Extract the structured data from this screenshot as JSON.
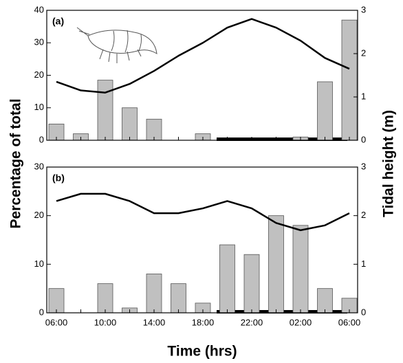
{
  "chart_data": [
    {
      "type": "bar",
      "panel_label": "(a)",
      "y_label": "Percentage of total",
      "y2_label": "Tidal height (m)",
      "ylim": [
        0,
        40
      ],
      "yticks": [
        0,
        10,
        20,
        30,
        40
      ],
      "y2lim": [
        0,
        3
      ],
      "y2ticks": [
        0,
        1,
        2,
        3
      ],
      "series": [
        {
          "type": "bar",
          "color": "#c0c0c0",
          "values": [
            5,
            2,
            18.5,
            10,
            6.5,
            0,
            2,
            0,
            0,
            0,
            1,
            18,
            37
          ]
        },
        {
          "type": "line",
          "axis": "y2",
          "color": "#000000",
          "values": [
            1.35,
            1.15,
            1.1,
            1.3,
            1.6,
            1.95,
            2.25,
            2.6,
            2.8,
            2.6,
            2.3,
            1.9,
            1.65
          ]
        }
      ]
    },
    {
      "type": "bar",
      "panel_label": "(b)",
      "x_label": "Time (hrs)",
      "categories": [
        "06:00",
        null,
        "10:00",
        null,
        "14:00",
        null,
        "18:00",
        null,
        "22:00",
        null,
        "02:00",
        null,
        "06:00"
      ],
      "ylim": [
        0,
        30
      ],
      "yticks": [
        0,
        10,
        20,
        30
      ],
      "y2lim": [
        0,
        3
      ],
      "y2ticks": [
        0,
        1,
        2,
        3
      ],
      "series": [
        {
          "type": "bar",
          "color": "#c0c0c0",
          "values": [
            5,
            0,
            6,
            1,
            8,
            6,
            2,
            14,
            12,
            20,
            18,
            5,
            3
          ]
        },
        {
          "type": "line",
          "axis": "y2",
          "color": "#000000",
          "values": [
            2.3,
            2.45,
            2.45,
            2.3,
            2.05,
            2.05,
            2.15,
            2.3,
            2.15,
            1.85,
            1.7,
            1.8,
            2.05
          ]
        }
      ]
    }
  ]
}
